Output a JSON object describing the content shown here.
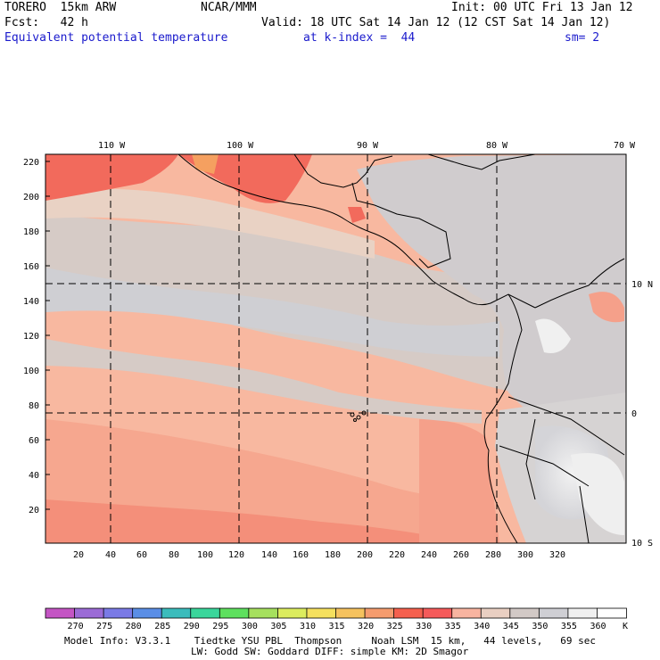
{
  "header": {
    "model": "TORERO  15km ARW",
    "center": "NCAR/MMM",
    "init": "Init: 00 UTC Fri 13 Jan 12",
    "fcst": "Fcst:   42 h",
    "valid": "Valid: 18 UTC Sat 14 Jan 12 (12 CST Sat 14 Jan 12)",
    "field": "Equivalent potential temperature",
    "level": "at k-index =  44",
    "smooth": "sm= 2"
  },
  "lon_labels": [
    "110 W",
    "100 W",
    "90 W",
    "80 W",
    "70 W"
  ],
  "lat_labels": [
    "10 N",
    "0",
    "10 S"
  ],
  "y_ticks": [
    "220",
    "200",
    "180",
    "160",
    "140",
    "120",
    "100",
    "80",
    "60",
    "40",
    "20"
  ],
  "x_ticks": [
    "20",
    "40",
    "60",
    "80",
    "100",
    "120",
    "140",
    "160",
    "180",
    "200",
    "220",
    "240",
    "260",
    "280",
    "300",
    "320"
  ],
  "colorbar": {
    "labels": [
      "270",
      "275",
      "280",
      "285",
      "290",
      "295",
      "300",
      "305",
      "310",
      "315",
      "320",
      "325",
      "330",
      "335",
      "340",
      "345",
      "350",
      "355",
      "360",
      "K"
    ],
    "colors": [
      "#c455c4",
      "#9b6bd6",
      "#7a7ae6",
      "#5a8ee6",
      "#3bbcbc",
      "#3ad69b",
      "#5ee05e",
      "#a6e05e",
      "#dcec5e",
      "#f5e05e",
      "#f5c25e",
      "#f59c6e",
      "#f5604e",
      "#f55a5a",
      "#f8b4a0",
      "#e9cfc2",
      "#d2c9c6",
      "#cfcfd4",
      "#f0f0f0",
      "#ffffff"
    ]
  },
  "footer": {
    "line1": "Model Info: V3.3.1    Tiedtke YSU PBL  Thompson     Noah LSM  15 km,   44 levels,   69 sec",
    "line2": "LW: Godd SW: Goddard DIFF: simple KM: 2D Smagor"
  }
}
